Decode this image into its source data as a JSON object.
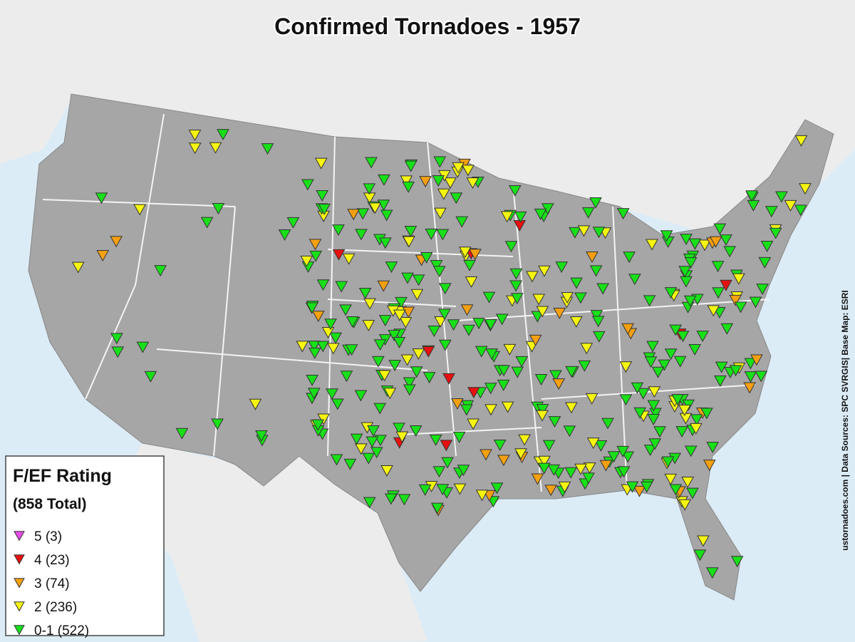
{
  "title": "Confirmed Tornadoes - 1957",
  "legend": {
    "title": "F/EF Rating",
    "subtitle": "(858 Total)",
    "items": [
      {
        "label": "5 (3)",
        "color": "#e84de8"
      },
      {
        "label": "4 (23)",
        "color": "#e81010"
      },
      {
        "label": "3 (74)",
        "color": "#f5a010"
      },
      {
        "label": "2 (236)",
        "color": "#f5f510"
      },
      {
        "label": "0-1 (522)",
        "color": "#18e018"
      }
    ]
  },
  "credit": "ustornadoes.com | Data Sources: SPC SVRGIS| Base Map: ESRI"
}
